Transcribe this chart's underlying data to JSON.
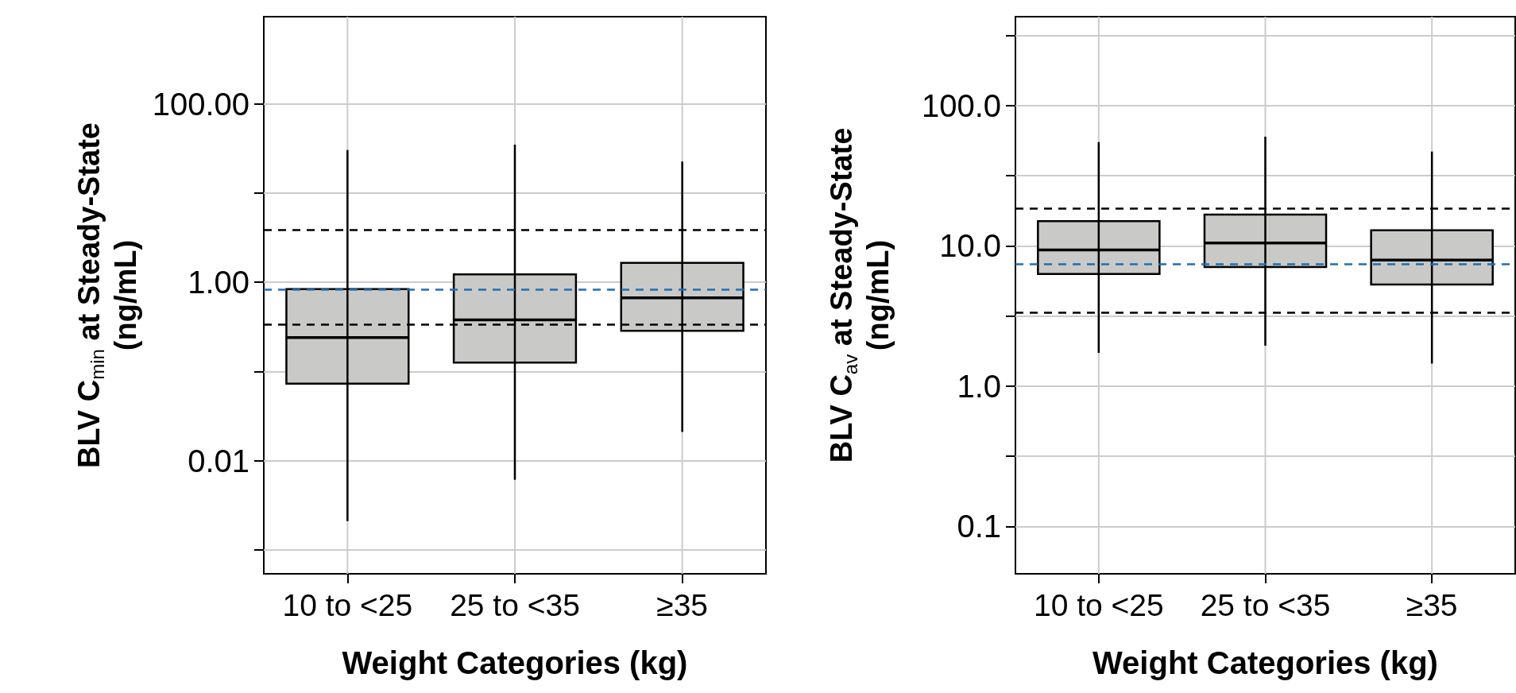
{
  "chart_data": [
    {
      "type": "box",
      "xlabel": "Weight Categories (kg)",
      "ylabel": "BLV C$_{min}$ at Steady-State\n(ng/mL)",
      "categories": [
        "10 to <25",
        "25 to <35",
        "≥35"
      ],
      "log": "y",
      "ylim": [
        0.00054,
        950
      ],
      "yticks": [
        {
          "value": 0.001,
          "label": null
        },
        {
          "value": 0.01,
          "label": "0.01"
        },
        {
          "value": 0.1,
          "label": null
        },
        {
          "value": 1,
          "label": "1.00"
        },
        {
          "value": 10,
          "label": null
        },
        {
          "value": 100,
          "label": "100.00"
        }
      ],
      "grid": true,
      "series": [
        {
          "color": "#c9cac7",
          "boxes": [
            {
              "low": 0.0021,
              "q1": 0.073,
              "median": 0.24,
              "q3": 0.84,
              "high": 30.5
            },
            {
              "low": 0.0061,
              "q1": 0.126,
              "median": 0.38,
              "q3": 1.23,
              "high": 35
            },
            {
              "low": 0.021,
              "q1": 0.286,
              "median": 0.67,
              "q3": 1.65,
              "high": 22.6
            }
          ]
        }
      ],
      "ref_lines": [
        {
          "axis": "y",
          "value": 3.84,
          "color": "#000000",
          "line_style": "dashed"
        },
        {
          "axis": "y",
          "value": 0.34,
          "color": "#000000",
          "line_style": "dashed"
        },
        {
          "axis": "y",
          "value": 0.83,
          "color": "#1f6fb4",
          "line_style": "dashed"
        }
      ]
    },
    {
      "type": "box",
      "xlabel": "Weight Categories (kg)",
      "ylabel": "BLV C$_{av}$ at Steady-State\n(ng/mL)",
      "categories": [
        "10 to <25",
        "25 to <35",
        "≥35"
      ],
      "log": "y",
      "ylim": [
        0.046,
        430
      ],
      "yticks": [
        {
          "value": 0.1,
          "label": "0.1"
        },
        {
          "value": 0.316,
          "label": null
        },
        {
          "value": 1,
          "label": "1.0"
        },
        {
          "value": 3.16,
          "label": null
        },
        {
          "value": 10,
          "label": "10.0"
        },
        {
          "value": 31.6,
          "label": null
        },
        {
          "value": 100,
          "label": "100.0"
        },
        {
          "value": 316,
          "label": null
        }
      ],
      "grid": true,
      "series": [
        {
          "color": "#c9cac7",
          "boxes": [
            {
              "low": 1.73,
              "q1": 6.31,
              "median": 9.34,
              "q3": 15.0,
              "high": 55
            },
            {
              "low": 1.94,
              "q1": 7.07,
              "median": 10.5,
              "q3": 16.7,
              "high": 60
            },
            {
              "low": 1.45,
              "q1": 5.31,
              "median": 7.91,
              "q3": 12.9,
              "high": 47
            }
          ]
        }
      ],
      "ref_lines": [
        {
          "axis": "y",
          "value": 18.6,
          "color": "#000000",
          "line_style": "dashed"
        },
        {
          "axis": "y",
          "value": 3.37,
          "color": "#000000",
          "line_style": "dashed"
        },
        {
          "axis": "y",
          "value": 7.39,
          "color": "#1f6fb4",
          "line_style": "dashed"
        }
      ]
    }
  ]
}
